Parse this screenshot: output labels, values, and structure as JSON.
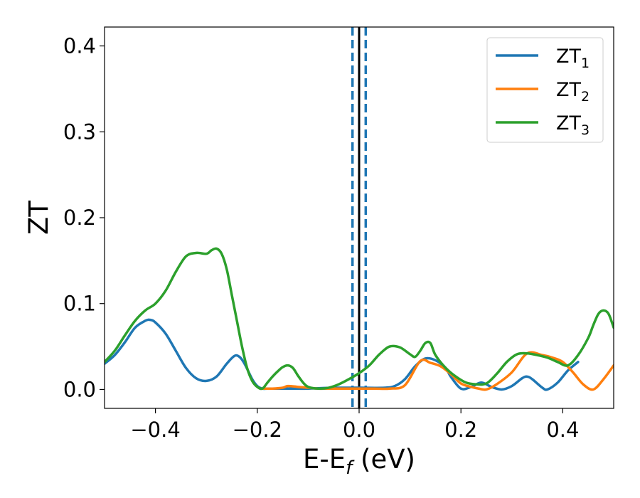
{
  "chart_data": {
    "type": "line",
    "title": "",
    "xlabel": "E-E",
    "xlabel_sub": "f",
    "xlabel_unit": " (eV)",
    "ylabel": "ZT",
    "xlim": [
      -0.5,
      0.5
    ],
    "ylim": [
      -0.022,
      0.422
    ],
    "grid": false,
    "legend_position": "top-right",
    "x_ticks": [
      {
        "value": -0.4,
        "label": "−0.4"
      },
      {
        "value": -0.2,
        "label": "−0.2"
      },
      {
        "value": 0.0,
        "label": "0.0"
      },
      {
        "value": 0.2,
        "label": "0.2"
      },
      {
        "value": 0.4,
        "label": "0.4"
      }
    ],
    "y_ticks": [
      {
        "value": 0.0,
        "label": "0.0"
      },
      {
        "value": 0.1,
        "label": "0.1"
      },
      {
        "value": 0.2,
        "label": "0.2"
      },
      {
        "value": 0.3,
        "label": "0.3"
      },
      {
        "value": 0.4,
        "label": "0.4"
      }
    ],
    "reference_lines": [
      {
        "x": -0.013,
        "color": "#1f77b4",
        "style": "dashed"
      },
      {
        "x": 0.0,
        "color": "#000000",
        "style": "solid"
      },
      {
        "x": 0.013,
        "color": "#1f77b4",
        "style": "dashed"
      }
    ],
    "series": [
      {
        "name": "ZT",
        "subscript": "1",
        "color": "#1f77b4",
        "x": [
          -0.5,
          -0.48,
          -0.46,
          -0.44,
          -0.42,
          -0.41,
          -0.4,
          -0.38,
          -0.36,
          -0.34,
          -0.32,
          -0.3,
          -0.28,
          -0.26,
          -0.245,
          -0.235,
          -0.225,
          -0.21,
          -0.2,
          -0.19,
          -0.18,
          -0.16,
          -0.14,
          -0.1,
          -0.05,
          0.0,
          0.05,
          0.07,
          0.09,
          0.11,
          0.13,
          0.15,
          0.17,
          0.18,
          0.2,
          0.22,
          0.24,
          0.26,
          0.28,
          0.3,
          0.32,
          0.33,
          0.34,
          0.36,
          0.37,
          0.39,
          0.41,
          0.43
        ],
        "y": [
          0.03,
          0.04,
          0.055,
          0.072,
          0.08,
          0.081,
          0.078,
          0.065,
          0.045,
          0.025,
          0.013,
          0.01,
          0.015,
          0.03,
          0.039,
          0.038,
          0.03,
          0.012,
          0.004,
          0.001,
          0.001,
          0.001,
          0.001,
          0.001,
          0.002,
          0.002,
          0.002,
          0.004,
          0.012,
          0.027,
          0.036,
          0.034,
          0.025,
          0.015,
          0.001,
          0.003,
          0.008,
          0.003,
          0.0,
          0.004,
          0.013,
          0.015,
          0.012,
          0.002,
          0.0,
          0.008,
          0.022,
          0.032
        ]
      },
      {
        "name": "ZT",
        "subscript": "2",
        "color": "#ff7f0e",
        "x": [
          -0.19,
          -0.17,
          -0.15,
          -0.14,
          -0.12,
          -0.1,
          -0.08,
          -0.06,
          -0.04,
          -0.02,
          0.0,
          0.03,
          0.06,
          0.09,
          0.12,
          0.14,
          0.16,
          0.18,
          0.2,
          0.22,
          0.235,
          0.25,
          0.27,
          0.3,
          0.33,
          0.36,
          0.38,
          0.4,
          0.42,
          0.44,
          0.46,
          0.48,
          0.5
        ],
        "y": [
          0.001,
          0.001,
          0.002,
          0.004,
          0.003,
          0.002,
          0.001,
          0.001,
          0.001,
          0.001,
          0.001,
          0.001,
          0.001,
          0.005,
          0.033,
          0.031,
          0.027,
          0.018,
          0.007,
          0.003,
          0.001,
          0.0,
          0.006,
          0.02,
          0.042,
          0.04,
          0.037,
          0.032,
          0.02,
          0.006,
          0.0,
          0.012,
          0.028
        ]
      },
      {
        "name": "ZT",
        "subscript": "3",
        "color": "#2ca02c",
        "x": [
          -0.5,
          -0.48,
          -0.46,
          -0.44,
          -0.42,
          -0.4,
          -0.38,
          -0.36,
          -0.34,
          -0.32,
          -0.3,
          -0.29,
          -0.28,
          -0.27,
          -0.26,
          -0.25,
          -0.24,
          -0.23,
          -0.22,
          -0.21,
          -0.2,
          -0.19,
          -0.18,
          -0.17,
          -0.16,
          -0.15,
          -0.14,
          -0.13,
          -0.12,
          -0.11,
          -0.1,
          -0.08,
          -0.06,
          -0.04,
          -0.02,
          0.0,
          0.02,
          0.04,
          0.06,
          0.08,
          0.1,
          0.11,
          0.12,
          0.13,
          0.14,
          0.15,
          0.17,
          0.19,
          0.21,
          0.23,
          0.25,
          0.27,
          0.29,
          0.31,
          0.33,
          0.35,
          0.37,
          0.39,
          0.41,
          0.43,
          0.45,
          0.46,
          0.47,
          0.48,
          0.49,
          0.5
        ],
        "y": [
          0.032,
          0.045,
          0.063,
          0.08,
          0.092,
          0.1,
          0.115,
          0.137,
          0.155,
          0.159,
          0.158,
          0.162,
          0.164,
          0.158,
          0.14,
          0.11,
          0.08,
          0.05,
          0.025,
          0.01,
          0.003,
          0.001,
          0.008,
          0.015,
          0.021,
          0.026,
          0.028,
          0.025,
          0.016,
          0.008,
          0.003,
          0.001,
          0.002,
          0.006,
          0.012,
          0.019,
          0.028,
          0.041,
          0.05,
          0.049,
          0.041,
          0.038,
          0.045,
          0.054,
          0.054,
          0.04,
          0.025,
          0.015,
          0.008,
          0.006,
          0.007,
          0.018,
          0.032,
          0.041,
          0.042,
          0.04,
          0.037,
          0.032,
          0.028,
          0.04,
          0.06,
          0.075,
          0.088,
          0.092,
          0.088,
          0.072
        ]
      }
    ]
  }
}
